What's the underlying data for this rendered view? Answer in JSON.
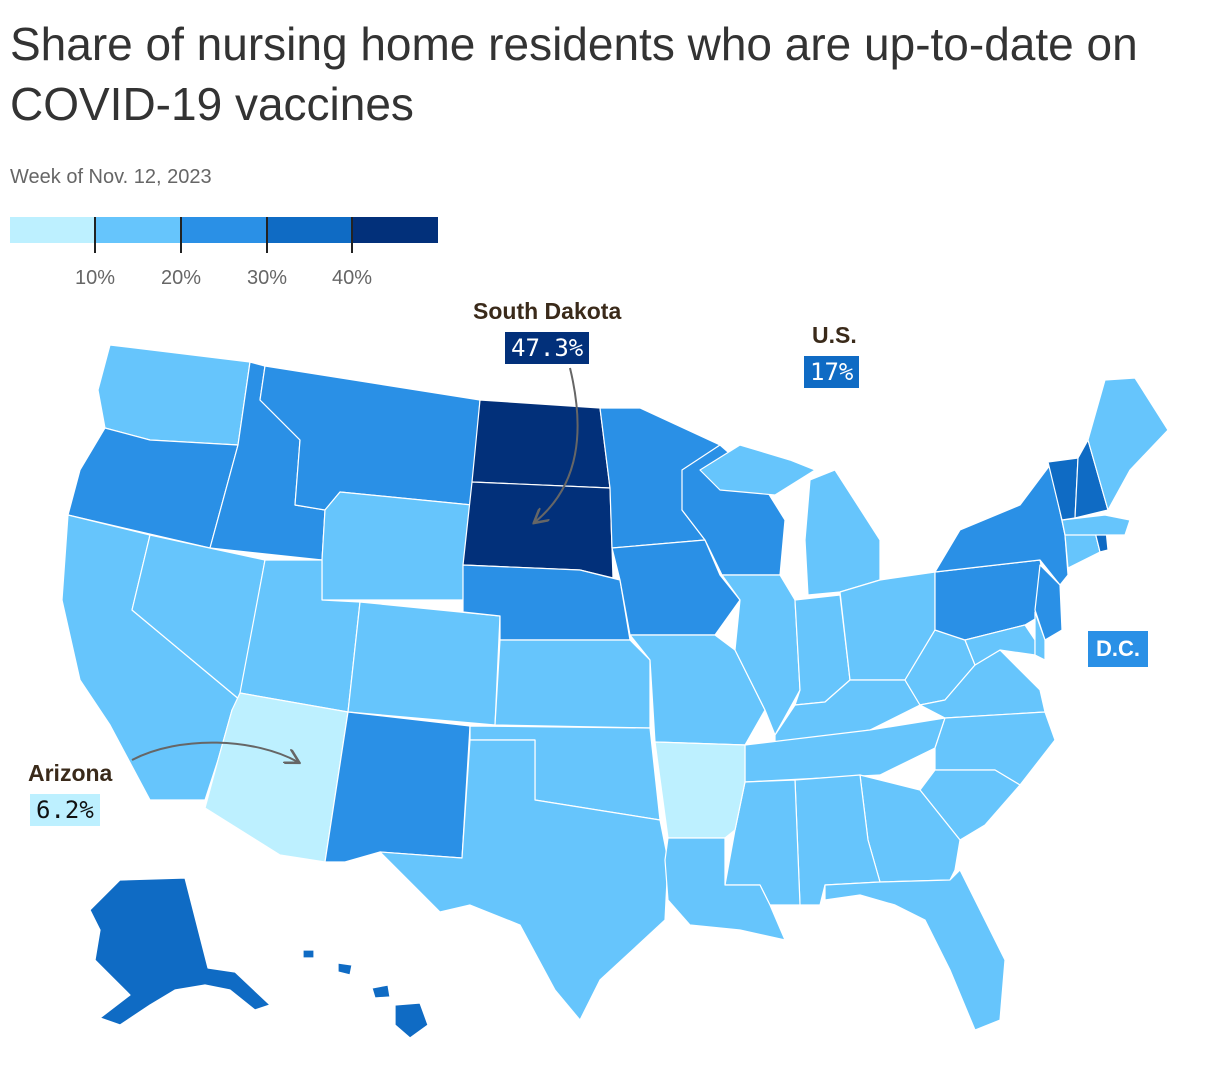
{
  "header": {
    "title": "Share of nursing home residents who are up-to-date on COVID-19 vaccines",
    "subtitle": "Week of Nov. 12, 2023"
  },
  "legend": {
    "colors": [
      "#bdf0ff",
      "#66c5fc",
      "#2a90e6",
      "#0f6bc4",
      "#02307a"
    ],
    "breaks": [
      10,
      20,
      30,
      40
    ],
    "tick_labels": [
      "10%",
      "20%",
      "30%",
      "40%"
    ]
  },
  "callouts": {
    "south_dakota": {
      "name": "South Dakota",
      "value": "47.3%",
      "color": "#02307a"
    },
    "us": {
      "name": "U.S.",
      "value": "17%",
      "color": "#0f6bc4"
    },
    "arizona": {
      "name": "Arizona",
      "value": "6.2%",
      "color": "#bdf0ff"
    },
    "dc": {
      "name": "D.C.",
      "color": "#2a90e6"
    }
  },
  "colors": {
    "state_border": "#ffffff",
    "arrow": "#666666"
  }
}
